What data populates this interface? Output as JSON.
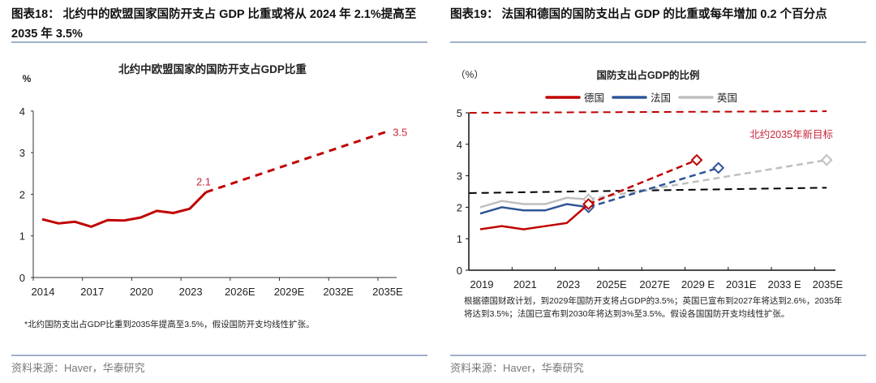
{
  "left": {
    "heading": "图表18：  北约中的欧盟国家国防开支占  GDP  比重或将从  2024  年 2.1%提高至 2035 年 3.5%",
    "source": "资料来源：Haver，华泰研究",
    "note": "*北约国防支出占GDP比重到2035年提高至3.5%，假设国防开支均线性扩张。"
  },
  "right": {
    "heading": "图表19：  法国和德国的国防支出占 GDP 的比重或每年增加 0.2 个百分点",
    "source": "资料来源：Haver，华泰研究",
    "note": "根据德国财政计划，到2029年国防开支将占GDP的3.5%；英国已宣布到2027年将达到2.6%，2035年将达到3.5%；法国已宣布到2030年将达到3%至3.5%。假设各国国防开支均线性扩张。"
  },
  "chart_data": [
    {
      "type": "line",
      "title": "北约中欧盟国家的国防开支占GDP比重",
      "ylabel": "%",
      "ylim": [
        0,
        4
      ],
      "yticks": [
        "0",
        "1",
        "2",
        "3",
        "4"
      ],
      "xticks": [
        "2014",
        "2017",
        "2020",
        "2023",
        "2026E",
        "2029E",
        "2032E",
        "2035E"
      ],
      "grid": false,
      "color": "#c00000",
      "series": [
        {
          "style": "solid",
          "x": [
            2014,
            2015,
            2016,
            2017,
            2018,
            2019,
            2020,
            2021,
            2022,
            2023,
            2024
          ],
          "y": [
            1.4,
            1.3,
            1.34,
            1.22,
            1.38,
            1.37,
            1.44,
            1.6,
            1.55,
            1.65,
            2.05
          ]
        },
        {
          "style": "dashed",
          "x": [
            2024,
            2035
          ],
          "y": [
            2.05,
            3.5
          ]
        }
      ],
      "data_labels": [
        {
          "x": 2024,
          "y": 2.1,
          "text": "2.1"
        },
        {
          "x": 2035,
          "y": 3.5,
          "text": "3.5"
        }
      ]
    },
    {
      "type": "line",
      "title": "国防支出占GDP的比例",
      "ylabel": "（%）",
      "ylim": [
        0,
        5
      ],
      "yticks": [
        "0",
        "1",
        "2",
        "3",
        "4",
        "5"
      ],
      "xticks": [
        "2019",
        "2021",
        "2023",
        "2025E",
        "2027E",
        "2029 E",
        "2031E",
        "2033 E",
        "2035E"
      ],
      "grid": false,
      "legend_position": "top",
      "series": [
        {
          "name": "德国",
          "color": "#c00000",
          "x": [
            2019,
            2020,
            2021,
            2022,
            2023,
            2024
          ],
          "y": [
            1.3,
            1.4,
            1.3,
            1.4,
            1.5,
            2.1
          ],
          "projection": {
            "x": [
              2024,
              2029
            ],
            "y": [
              2.1,
              3.5
            ]
          }
        },
        {
          "name": "法国",
          "color": "#2f5597",
          "x": [
            2019,
            2020,
            2021,
            2022,
            2023,
            2024
          ],
          "y": [
            1.8,
            2.0,
            1.9,
            1.9,
            2.1,
            2.0
          ],
          "projection": {
            "x": [
              2024,
              2030
            ],
            "y": [
              2.0,
              3.25
            ]
          }
        },
        {
          "name": "英国",
          "color": "#bfbfbf",
          "x": [
            2019,
            2020,
            2021,
            2022,
            2023,
            2024
          ],
          "y": [
            2.0,
            2.2,
            2.1,
            2.1,
            2.3,
            2.25
          ],
          "projection": {
            "x": [
              2024,
              2035
            ],
            "y": [
              2.25,
              3.5
            ]
          }
        }
      ],
      "reference_lines": [
        {
          "color": "#c00000",
          "x": [
            2018.5,
            2035
          ],
          "y": [
            5.0,
            5.05
          ],
          "label": "北约2035年新目标"
        },
        {
          "color": "#000000",
          "x": [
            2018.5,
            2035
          ],
          "y": [
            2.45,
            2.62
          ]
        }
      ]
    }
  ]
}
